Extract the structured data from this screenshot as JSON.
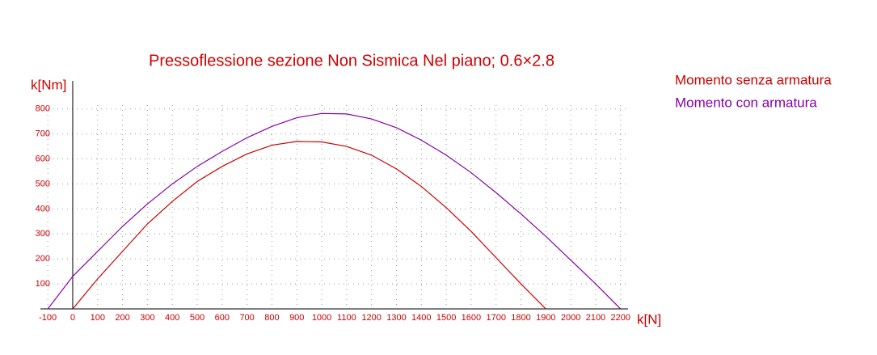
{
  "chart_data": {
    "type": "line",
    "title": "Pressoflessione sezione Non Sismica Nel piano; 0.6×2.8",
    "x_label": "k[N]",
    "y_label": "k[Nm]",
    "text_color": "#cc0000",
    "axis_color": "#000000",
    "grid": true,
    "legend": "right",
    "xlim": [
      -120,
      2230
    ],
    "ylim": [
      0,
      880
    ],
    "xticks": [
      -100,
      0,
      100,
      200,
      300,
      400,
      500,
      600,
      700,
      800,
      900,
      1000,
      1100,
      1200,
      1300,
      1400,
      1500,
      1600,
      1700,
      1800,
      1900,
      2000,
      2100,
      2200
    ],
    "yticks": [
      100,
      200,
      300,
      400,
      500,
      600,
      700,
      800
    ],
    "series": [
      {
        "name": "Momento senza armatura",
        "color": "#cc0000",
        "x": [
          0,
          100,
          200,
          300,
          400,
          500,
          600,
          700,
          800,
          900,
          1000,
          1100,
          1200,
          1300,
          1400,
          1500,
          1600,
          1700,
          1800,
          1900
        ],
        "values": [
          0,
          120,
          230,
          340,
          430,
          510,
          570,
          620,
          655,
          670,
          668,
          650,
          615,
          560,
          490,
          405,
          310,
          205,
          100,
          0
        ]
      },
      {
        "name": "Momento con armatura",
        "color": "#8800aa",
        "x": [
          -100,
          0,
          100,
          200,
          300,
          400,
          500,
          600,
          700,
          800,
          900,
          1000,
          1100,
          1200,
          1300,
          1400,
          1500,
          1600,
          1700,
          1800,
          1900,
          2000,
          2100,
          2200
        ],
        "values": [
          0,
          130,
          230,
          330,
          420,
          500,
          570,
          630,
          685,
          730,
          765,
          782,
          780,
          760,
          725,
          675,
          615,
          545,
          465,
          380,
          290,
          195,
          100,
          0
        ]
      }
    ]
  }
}
